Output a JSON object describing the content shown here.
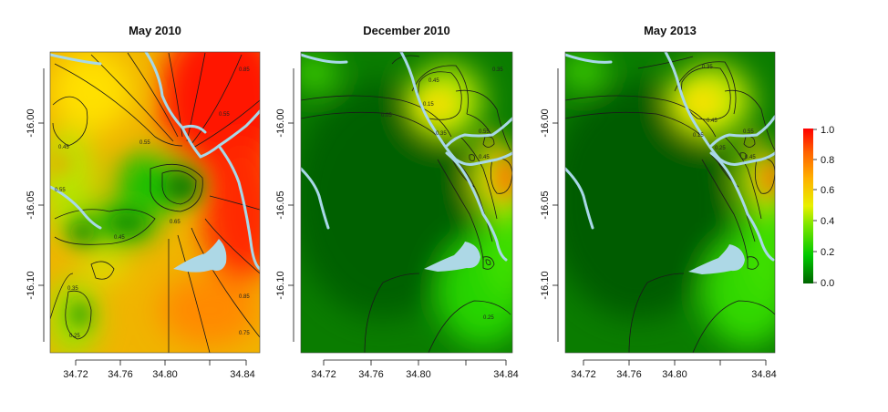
{
  "chart_data": [
    {
      "type": "heatmap",
      "title": "May 2010",
      "xlim": [
        34.708,
        34.843
      ],
      "ylim": [
        -16.145,
        -15.955
      ],
      "x_ticks": [
        34.72,
        34.76,
        34.8,
        34.84
      ],
      "x_tick_labels": [
        "34.72",
        "34.76",
        "34.80",
        "34.84"
      ],
      "y_ticks": [
        -16.0,
        -16.05,
        -16.1
      ],
      "y_tick_labels": [
        "-16.00",
        "-16.05",
        "-16.10"
      ],
      "contour_labels": [
        "0.85",
        "0.55",
        "0.45",
        "0.55",
        "0.45",
        "0.55",
        "0.65",
        "0.85",
        "0.75",
        "0.35",
        "0.25"
      ],
      "value_range": [
        0,
        1
      ]
    },
    {
      "type": "heatmap",
      "title": "December 2010",
      "xlim": [
        34.708,
        34.843
      ],
      "ylim": [
        -16.145,
        -15.955
      ],
      "x_ticks": [
        34.72,
        34.76,
        34.8,
        34.84
      ],
      "x_tick_labels": [
        "34.72",
        "34.76",
        "34.80",
        "34.84"
      ],
      "y_ticks": [
        -16.0,
        -16.05,
        -16.1
      ],
      "y_tick_labels": [
        "-16.00",
        "-16.05",
        "-16.10"
      ],
      "contour_labels": [
        "0.35",
        "0.45",
        "0.05",
        "0.15",
        "0.35",
        "0.55",
        "0.45",
        "0.25"
      ],
      "value_range": [
        0,
        1
      ]
    },
    {
      "type": "heatmap",
      "title": "May 2013",
      "xlim": [
        34.708,
        34.843
      ],
      "ylim": [
        -16.145,
        -15.955
      ],
      "x_ticks": [
        34.72,
        34.76,
        34.8,
        34.84
      ],
      "x_tick_labels": [
        "34.72",
        "34.76",
        "34.80",
        "34.84"
      ],
      "y_ticks": [
        -16.0,
        -16.05,
        -16.1
      ],
      "y_tick_labels": [
        "-16.00",
        "-16.05",
        "-16.10"
      ],
      "contour_labels": [
        "0.35",
        "0.45",
        "0.15",
        "0.25",
        "0.55",
        "0.45"
      ],
      "value_range": [
        0,
        1
      ]
    }
  ],
  "legend": {
    "ticks": [
      1.0,
      0.8,
      0.6,
      0.4,
      0.2,
      0.0
    ],
    "tick_labels": [
      "1.0",
      "0.8",
      "0.6",
      "0.4",
      "0.2",
      "0.0"
    ],
    "colors": [
      "#006400",
      "#00c800",
      "#6cf000",
      "#e8f000",
      "#ffb000",
      "#ff6000",
      "#ff0000"
    ]
  },
  "colors": {
    "river": "#a8d8e8",
    "lake": "#add8e6",
    "contour": "#1a1a1a"
  }
}
